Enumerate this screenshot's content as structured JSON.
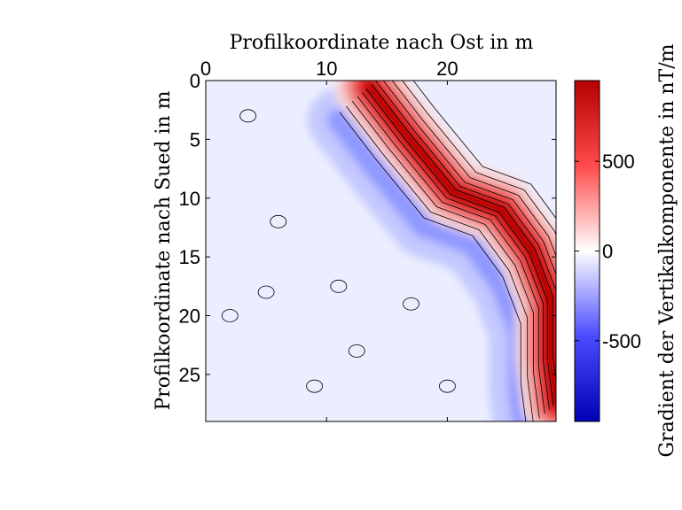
{
  "chart_data": {
    "type": "heatmap",
    "subtype": "filled contour map",
    "title": "",
    "xlabel": "Profilkoordinate nach Ost in m",
    "ylabel": "Profilkoordinate nach Sued in m",
    "xlabel_position": "top",
    "y_axis_reversed": true,
    "xlim": [
      0,
      29
    ],
    "ylim": [
      0,
      29
    ],
    "xticks": [
      0,
      10,
      20
    ],
    "yticks": [
      0,
      5,
      10,
      15,
      20,
      25
    ],
    "colorbar": {
      "label": "Gradient der Vertikalkomponente in nT/m",
      "range": [
        -950,
        950
      ],
      "ticks": [
        -500,
        0,
        500
      ],
      "colormap": "blue-white-red",
      "colors": {
        "low": "#0000c8",
        "mid": "#ffffff",
        "high": "#c80000"
      }
    },
    "contour_color": "#000000",
    "anomaly_band": {
      "description": "strong positive anomaly along a NW-SE diagonal band with negative flanks",
      "ridge_points": [
        {
          "x": 13.5,
          "y": 0.5
        },
        {
          "x": 16.5,
          "y": 4.5
        },
        {
          "x": 20.5,
          "y": 9.5
        },
        {
          "x": 24.5,
          "y": 11.0
        },
        {
          "x": 27.0,
          "y": 14.5
        },
        {
          "x": 28.5,
          "y": 18.5
        },
        {
          "x": 28.5,
          "y": 23.5
        },
        {
          "x": 29.0,
          "y": 27.5
        }
      ],
      "peak_value": 900,
      "negative_flank_value": -450
    }
  }
}
